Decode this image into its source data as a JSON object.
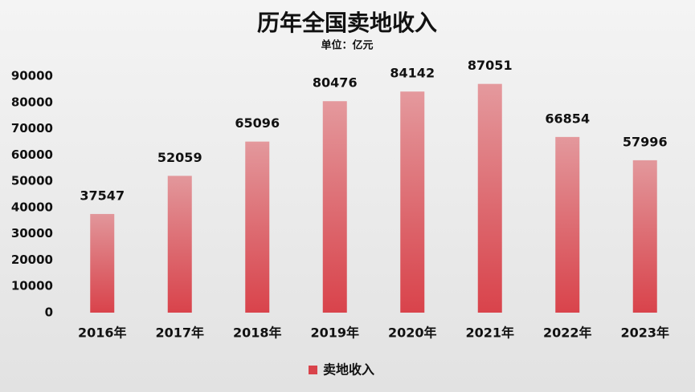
{
  "chart_data": {
    "type": "bar",
    "title": "历年全国卖地收入",
    "subtitle": "单位：亿元",
    "categories": [
      "2016年",
      "2017年",
      "2018年",
      "2019年",
      "2020年",
      "2021年",
      "2022年",
      "2023年"
    ],
    "series": [
      {
        "name": "卖地收入",
        "color": "#d9434b",
        "values": [
          37547,
          52059,
          65096,
          80476,
          84142,
          87051,
          66854,
          57996
        ]
      }
    ],
    "ylim": [
      0,
      90000
    ],
    "yticks": [
      0,
      10000,
      20000,
      30000,
      40000,
      50000,
      60000,
      70000,
      80000,
      90000
    ],
    "grid": false,
    "legend": "bottom"
  }
}
